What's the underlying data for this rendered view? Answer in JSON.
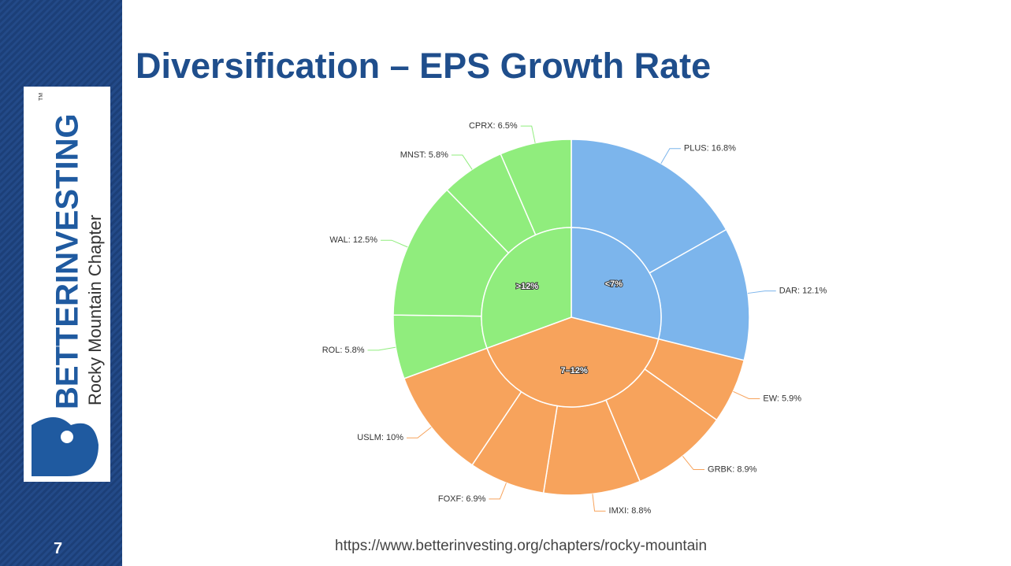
{
  "slide": {
    "title": "Diversification – EPS Growth Rate",
    "page_number": "7",
    "url": "https://www.betterinvesting.org/chapters/rocky-mountain",
    "logo_brand": "BETTERINVESTING",
    "logo_chapter": "Rocky Mountain Chapter",
    "logo_tm": "TM"
  },
  "chart_data": {
    "type": "sunburst",
    "series": [
      {
        "name": "<7%",
        "color": "#7cb5ec",
        "values": [
          16.8,
          12.1
        ],
        "value_labels": [
          "PLUS: 16.8%",
          "DAR: 12.1%"
        ]
      },
      {
        "name": "7–12%",
        "color": "#f7a35c",
        "values": [
          5.9,
          8.9,
          8.8,
          6.9,
          10
        ],
        "value_labels": [
          "EW: 5.9%",
          "GRBK: 8.9%",
          "IMXI: 8.8%",
          "FOXF: 6.9%",
          "USLM: 10%"
        ]
      },
      {
        "name": ">12%",
        "color": "#90ed7d",
        "values": [
          5.8,
          12.5,
          5.8,
          6.5
        ],
        "value_labels": [
          "ROL: 5.8%",
          "WAL: 12.5%",
          "MNST: 5.8%",
          "CPRX: 6.5%"
        ]
      }
    ]
  }
}
